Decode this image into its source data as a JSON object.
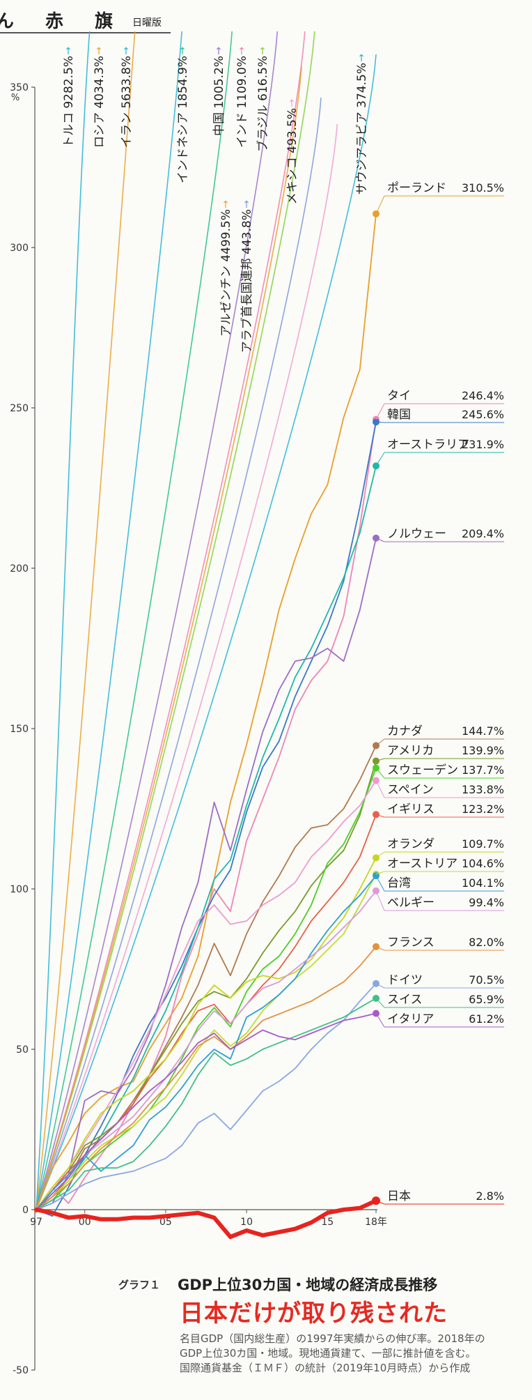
{
  "masthead": {
    "name": "ん 赤 旗",
    "edition": "日曜版"
  },
  "caption": {
    "label": "グラフ１",
    "title": "GDP上位30カ国・地域の経済成長推移",
    "headline": "日本だけが取り残された",
    "note": "名目GDP（国内総生産）の1997年実績からの伸び率。2018年のGDP上位30カ国・地域。現地通貨建て、一部に推計値を含む。国際通貨基金（ＩＭＦ）の統計（2019年10月時点）から作成"
  },
  "chart_data": {
    "type": "line",
    "title": "GDP上位30カ国・地域の経済成長推移",
    "ylabel": "%",
    "xlabel": "",
    "xlim": [
      1997,
      2018
    ],
    "ylim": [
      -50,
      350
    ],
    "x": [
      1997,
      1998,
      1999,
      2000,
      2001,
      2002,
      2003,
      2004,
      2005,
      2006,
      2007,
      2008,
      2009,
      2010,
      2011,
      2012,
      2013,
      2014,
      2015,
      2016,
      2017,
      2018
    ],
    "x_ticks": [
      {
        "value": 1997,
        "label": "97"
      },
      {
        "value": 2000,
        "label": "00"
      },
      {
        "value": 2005,
        "label": "05"
      },
      {
        "value": 2010,
        "label": "10"
      },
      {
        "value": 2015,
        "label": "15"
      },
      {
        "value": 2018,
        "label": "18年"
      }
    ],
    "y_ticks": [
      350,
      300,
      250,
      200,
      150,
      100,
      50,
      0,
      -50
    ],
    "y_unit": "%",
    "series": [
      {
        "name": "ポーランド",
        "final": "310.5%",
        "color": "#e8a02a",
        "values": [
          0,
          13,
          21,
          30,
          35,
          38,
          40,
          50,
          58,
          66,
          79,
          103,
          127,
          145,
          165,
          187,
          203,
          217,
          226,
          247,
          262,
          310.5
        ]
      },
      {
        "name": "タイ",
        "final": "246.4%",
        "color": "#ee86b6",
        "values": [
          0,
          7,
          2,
          10,
          17,
          24,
          33,
          42,
          54,
          73,
          86,
          100,
          93,
          115,
          128,
          141,
          156,
          165,
          171,
          185,
          213,
          246.4
        ]
      },
      {
        "name": "韓国",
        "final": "245.6%",
        "color": "#3a78c8",
        "values": [
          0,
          -2,
          7,
          17,
          26,
          36,
          48,
          58,
          66,
          76,
          88,
          98,
          106,
          124,
          138,
          146,
          160,
          171,
          182,
          196,
          219,
          245.6
        ]
      },
      {
        "name": "オーストラリア",
        "final": "231.9%",
        "color": "#1fb8a8",
        "values": [
          0,
          4,
          9,
          16,
          23,
          32,
          41,
          52,
          62,
          74,
          88,
          103,
          109,
          126,
          141,
          153,
          166,
          175,
          186,
          197,
          211,
          231.9
        ]
      },
      {
        "name": "ノルウェー",
        "final": "209.4%",
        "color": "#9b6ec6",
        "values": [
          0,
          2,
          11,
          34,
          37,
          36,
          44,
          55,
          70,
          88,
          102,
          127,
          112,
          131,
          149,
          162,
          171,
          172,
          175,
          171,
          187,
          209.4
        ]
      },
      {
        "name": "カナダ",
        "final": "144.7%",
        "color": "#b07a4e",
        "values": [
          0,
          4,
          10,
          19,
          22,
          27,
          34,
          42,
          51,
          60,
          70,
          83,
          73,
          86,
          96,
          104,
          113,
          119,
          120,
          125,
          134,
          144.7
        ]
      },
      {
        "name": "アメリカ",
        "final": "139.9%",
        "color": "#7a9a2a",
        "values": [
          0,
          6,
          12,
          20,
          23,
          27,
          33,
          42,
          50,
          58,
          65,
          68,
          66,
          72,
          80,
          87,
          93,
          101,
          107,
          112,
          123,
          139.9
        ]
      },
      {
        "name": "スウェーデン",
        "final": "137.7%",
        "color": "#4ccf28",
        "values": [
          0,
          3,
          8,
          14,
          18,
          22,
          26,
          31,
          38,
          47,
          57,
          63,
          57,
          68,
          75,
          79,
          86,
          95,
          108,
          114,
          124,
          137.7
        ]
      },
      {
        "name": "スペイン",
        "final": "133.8%",
        "color": "#ef9bd0",
        "values": [
          0,
          6,
          13,
          21,
          29,
          37,
          46,
          56,
          67,
          79,
          90,
          95,
          89,
          90,
          95,
          98,
          102,
          110,
          115,
          121,
          126,
          133.8
        ]
      },
      {
        "name": "イギリス",
        "final": "123.2%",
        "color": "#e9604a",
        "values": [
          0,
          6,
          12,
          17,
          22,
          27,
          33,
          41,
          47,
          55,
          62,
          64,
          58,
          64,
          70,
          75,
          82,
          90,
          96,
          102,
          110,
          123.2
        ]
      },
      {
        "name": "オランダ",
        "final": "109.7%",
        "color": "#c7d61d",
        "values": [
          0,
          7,
          13,
          22,
          30,
          34,
          37,
          42,
          47,
          54,
          64,
          70,
          66,
          71,
          73,
          72,
          74,
          78,
          85,
          91,
          100,
          109.7
        ]
      },
      {
        "name": "オーストリア",
        "final": "104.6%",
        "color": "#c3dc32",
        "values": [
          0,
          4,
          9,
          15,
          20,
          23,
          26,
          31,
          35,
          42,
          50,
          56,
          51,
          55,
          62,
          67,
          72,
          76,
          81,
          86,
          95,
          104.6
        ]
      },
      {
        "name": "台湾",
        "final": "104.1%",
        "color": "#2f9ed4",
        "values": [
          0,
          6,
          11,
          17,
          12,
          16,
          20,
          28,
          32,
          38,
          45,
          50,
          47,
          60,
          63,
          67,
          72,
          80,
          87,
          93,
          98,
          104.1
        ]
      },
      {
        "name": "ベルギー",
        "final": "99.4%",
        "color": "#d99ae0",
        "values": [
          0,
          5,
          10,
          17,
          21,
          25,
          29,
          35,
          41,
          48,
          56,
          62,
          58,
          64,
          69,
          71,
          75,
          79,
          83,
          88,
          93,
          99.4
        ]
      },
      {
        "name": "フランス",
        "final": "82.0%",
        "color": "#e49140",
        "values": [
          0,
          4,
          8,
          14,
          19,
          23,
          27,
          33,
          38,
          44,
          51,
          54,
          50,
          54,
          59,
          61,
          63,
          65,
          68,
          71,
          76,
          82.0
        ]
      },
      {
        "name": "ドイツ",
        "final": "70.5%",
        "color": "#88a8e2",
        "values": [
          0,
          2,
          5,
          8,
          10,
          11,
          12,
          14,
          16,
          20,
          27,
          30,
          25,
          31,
          37,
          40,
          44,
          50,
          55,
          59,
          65,
          70.5
        ]
      },
      {
        "name": "スイス",
        "final": "65.9%",
        "color": "#40c08a",
        "values": [
          0,
          3,
          6,
          12,
          13,
          13,
          15,
          20,
          26,
          33,
          42,
          49,
          45,
          47,
          50,
          52,
          54,
          56,
          58,
          60,
          63,
          65.9
        ]
      },
      {
        "name": "イタリア",
        "final": "61.2%",
        "color": "#a75ac8",
        "values": [
          0,
          5,
          10,
          17,
          22,
          27,
          32,
          37,
          41,
          46,
          52,
          55,
          50,
          53,
          56,
          54,
          53,
          55,
          57,
          59,
          60,
          61.2
        ]
      },
      {
        "name": "日本",
        "final": "2.8%",
        "color": "#e8231e",
        "values": [
          0,
          -1,
          -2.5,
          -2,
          -3,
          -3,
          -2.5,
          -2.5,
          -2,
          -1.5,
          -1,
          -2.5,
          -8.5,
          -6.5,
          -8,
          -7,
          -6,
          -4,
          -1,
          0,
          0.5,
          2.8
        ]
      }
    ],
    "offchart_series": [
      {
        "name": "トルコ",
        "final": "9282.5%",
        "color": "#22b3d6"
      },
      {
        "name": "ロシア",
        "final": "4034.3%",
        "color": "#e8a02a"
      },
      {
        "name": "イラン",
        "final": "5633.8%",
        "color": "#22b3d6"
      },
      {
        "name": "インドネシア",
        "final": "1854.9%",
        "color": "#1fc08a"
      },
      {
        "name": "中国",
        "final": "1005.2%",
        "color": "#9b6ec6"
      },
      {
        "name": "インド",
        "final": "1109.0%",
        "color": "#f07ab0"
      },
      {
        "name": "ブラジル",
        "final": "616.5%",
        "color": "#7ed03c"
      },
      {
        "name": "アルゼンチン",
        "final": "4499.5%",
        "color": "#e8a02a"
      },
      {
        "name": "アラブ首長国連邦",
        "final": "443.8%",
        "color": "#7a96d8"
      },
      {
        "name": "メキシコ",
        "final": "493.5%",
        "color": "#ef9bd0"
      },
      {
        "name": "サウジアラビア",
        "final": "374.5%",
        "color": "#22b3d6"
      }
    ]
  }
}
